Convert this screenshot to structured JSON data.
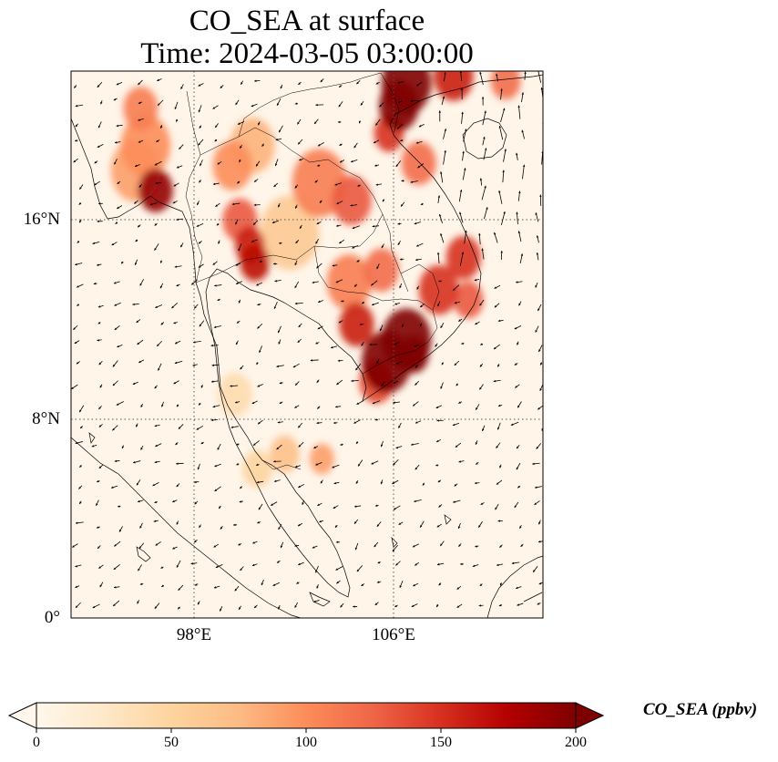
{
  "title": {
    "line1": "CO_SEA at surface",
    "line2": "Time: 2024-03-05 03:00:00"
  },
  "map": {
    "extent": {
      "lon_min": 93,
      "lon_max": 112,
      "lat_min": 0,
      "lat_max": 22
    },
    "lat_ticks": [
      {
        "value": 16,
        "label": "16°N"
      },
      {
        "value": 8,
        "label": "8°N"
      },
      {
        "value": 0,
        "label": "0°"
      }
    ],
    "lon_ticks": [
      {
        "value": 98,
        "label": "98°E"
      },
      {
        "value": 106,
        "label": "106°E"
      }
    ],
    "gridlines": "dotted",
    "wind_vectors": true,
    "colormap": "OrRd",
    "hotspots": [
      {
        "lon": 95.8,
        "lat": 20.5,
        "level": 110,
        "r": 0.7
      },
      {
        "lon": 96.0,
        "lat": 19.0,
        "level": 100,
        "r": 1.0
      },
      {
        "lon": 96.4,
        "lat": 17.2,
        "level": 190,
        "r": 0.7
      },
      {
        "lon": 95.6,
        "lat": 18.0,
        "level": 90,
        "r": 1.0
      },
      {
        "lon": 99.5,
        "lat": 18.2,
        "level": 100,
        "r": 0.8
      },
      {
        "lon": 100.3,
        "lat": 19.0,
        "level": 80,
        "r": 0.9
      },
      {
        "lon": 99.8,
        "lat": 16.0,
        "level": 130,
        "r": 0.7
      },
      {
        "lon": 100.2,
        "lat": 15.0,
        "level": 160,
        "r": 0.6
      },
      {
        "lon": 100.4,
        "lat": 14.3,
        "level": 170,
        "r": 0.6
      },
      {
        "lon": 103.0,
        "lat": 17.5,
        "level": 110,
        "r": 1.1
      },
      {
        "lon": 104.3,
        "lat": 16.8,
        "level": 130,
        "r": 0.8
      },
      {
        "lon": 101.8,
        "lat": 15.5,
        "level": 60,
        "r": 1.2
      },
      {
        "lon": 106.5,
        "lat": 21.5,
        "level": 220,
        "r": 1.0
      },
      {
        "lon": 106.2,
        "lat": 20.6,
        "level": 220,
        "r": 0.8
      },
      {
        "lon": 105.8,
        "lat": 19.5,
        "level": 150,
        "r": 0.6
      },
      {
        "lon": 107.0,
        "lat": 18.3,
        "level": 120,
        "r": 0.7
      },
      {
        "lon": 108.4,
        "lat": 21.8,
        "level": 160,
        "r": 0.8
      },
      {
        "lon": 110.5,
        "lat": 21.6,
        "level": 120,
        "r": 0.6
      },
      {
        "lon": 108.8,
        "lat": 14.5,
        "level": 150,
        "r": 0.7
      },
      {
        "lon": 107.8,
        "lat": 13.2,
        "level": 150,
        "r": 0.8
      },
      {
        "lon": 109.0,
        "lat": 12.8,
        "level": 130,
        "r": 0.6
      },
      {
        "lon": 104.2,
        "lat": 13.5,
        "level": 110,
        "r": 0.9
      },
      {
        "lon": 105.5,
        "lat": 14.0,
        "level": 120,
        "r": 0.7
      },
      {
        "lon": 104.5,
        "lat": 11.8,
        "level": 160,
        "r": 0.7
      },
      {
        "lon": 106.5,
        "lat": 11.2,
        "level": 230,
        "r": 1.0
      },
      {
        "lon": 105.7,
        "lat": 10.3,
        "level": 230,
        "r": 1.0
      },
      {
        "lon": 106.8,
        "lat": 10.6,
        "level": 200,
        "r": 0.6
      },
      {
        "lon": 105.3,
        "lat": 9.5,
        "level": 140,
        "r": 0.7
      },
      {
        "lon": 101.6,
        "lat": 6.6,
        "level": 70,
        "r": 0.6
      },
      {
        "lon": 103.1,
        "lat": 6.4,
        "level": 90,
        "r": 0.5
      },
      {
        "lon": 100.5,
        "lat": 6.0,
        "level": 50,
        "r": 0.6
      },
      {
        "lon": 99.6,
        "lat": 9.0,
        "level": 40,
        "r": 0.7
      }
    ]
  },
  "colorbar": {
    "min": 0,
    "max": 200,
    "ticks": [
      "0",
      "50",
      "100",
      "150",
      "200"
    ],
    "extend": "both",
    "label": "CO_SEA (ppbv)"
  }
}
